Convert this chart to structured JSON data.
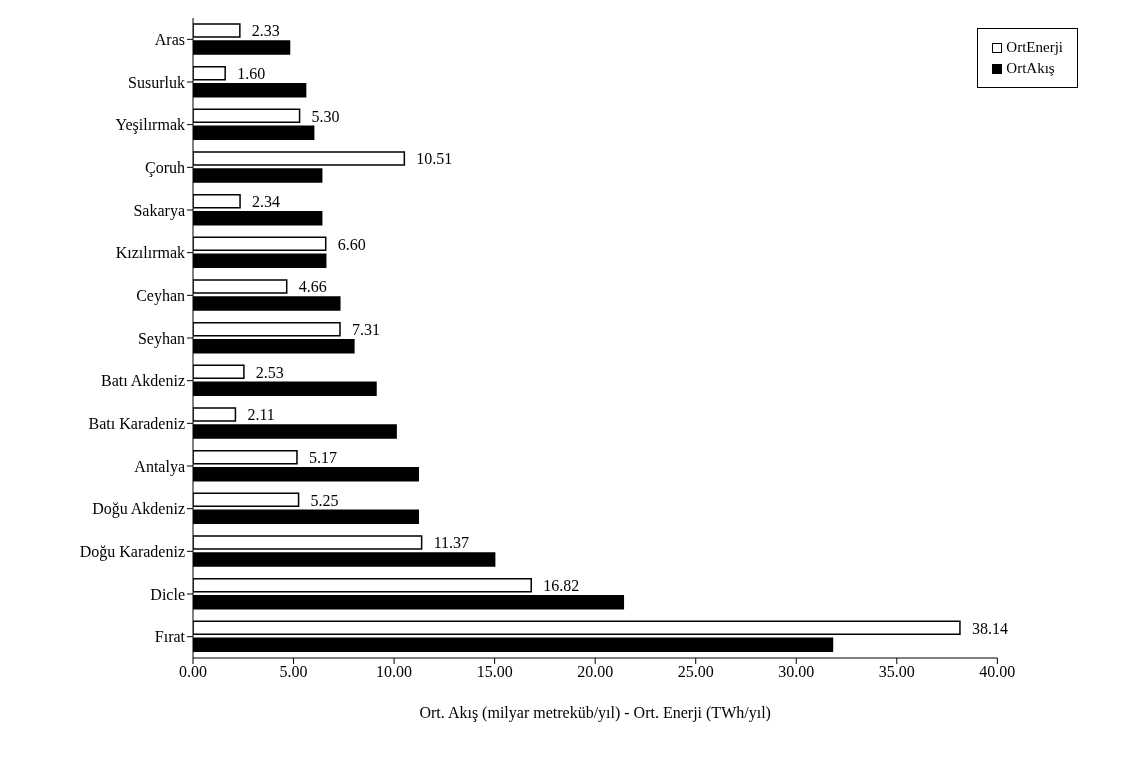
{
  "chart_data": {
    "type": "bar",
    "orientation": "horizontal",
    "xlabel": "Ort. Akış (milyar metreküb/yıl) - Ort. Enerji (TWh/yıl)",
    "categories": [
      "Aras",
      "Susurluk",
      "Yeşilırmak",
      "Çoruh",
      "Sakarya",
      "Kızılırmak",
      "Ceyhan",
      "Seyhan",
      "Batı Akdeniz",
      "Batı Karadeniz",
      "Antalya",
      "Doğu Akdeniz",
      "Doğu Karadeniz",
      "Dicle",
      "Fırat"
    ],
    "series": [
      {
        "name": "OrtEnerji",
        "color": "#ffffff",
        "values": [
          2.33,
          1.6,
          5.3,
          10.51,
          2.34,
          6.6,
          4.66,
          7.31,
          2.53,
          2.11,
          5.17,
          5.25,
          11.37,
          16.82,
          38.14
        ],
        "value_labels": [
          "2.33",
          "1.60",
          "5.30",
          "10.51",
          "2.34",
          "6.60",
          "4.66",
          "7.31",
          "2.53",
          "2.11",
          "5.17",
          "5.25",
          "11.37",
          "16.82",
          "38.14"
        ]
      },
      {
        "name": "OrtAkış",
        "color": "#000000",
        "values": [
          4.8,
          5.6,
          6.0,
          6.4,
          6.4,
          6.6,
          7.3,
          8.0,
          9.1,
          10.1,
          11.2,
          11.2,
          15.0,
          21.4,
          31.8
        ]
      }
    ],
    "xlim": [
      0,
      40
    ],
    "xticks": [
      {
        "value": 0,
        "label": "0.00"
      },
      {
        "value": 5,
        "label": "5.00"
      },
      {
        "value": 10,
        "label": "10.00"
      },
      {
        "value": 15,
        "label": "15.00"
      },
      {
        "value": 20,
        "label": "20.00"
      },
      {
        "value": 25,
        "label": "25.00"
      },
      {
        "value": 30,
        "label": "30.00"
      },
      {
        "value": 35,
        "label": "35.00"
      },
      {
        "value": 40,
        "label": "40.00"
      }
    ],
    "grid": false,
    "legend": "top right"
  }
}
